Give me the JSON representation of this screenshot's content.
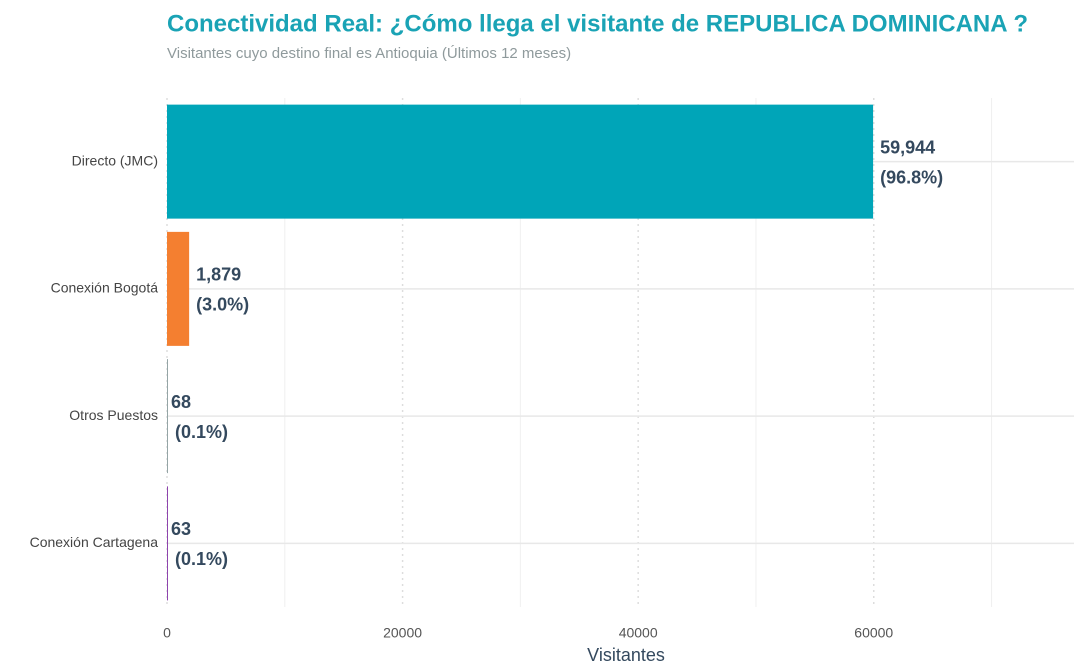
{
  "chart_data": {
    "type": "hbar",
    "title": "Conectividad Real: ¿Cómo llega el visitante de REPUBLICA DOMINICANA ?",
    "subtitle": "Visitantes cuyo destino final es Antioquia (Últimos 12 meses)",
    "x_label": "Visitantes",
    "categories": [
      "Directo (JMC)",
      "Conexión Bogotá",
      "Otros Puestos",
      "Conexión Cartagena"
    ],
    "values": [
      59944,
      1879,
      68,
      63
    ],
    "value_labels": [
      "59,944",
      "1,879",
      "68",
      "63"
    ],
    "percent_labels": [
      "(96.8%)",
      "(3.0%)",
      "(0.1%)",
      "(0.1%)"
    ],
    "colors": [
      "#00a5b8",
      "#f47f30",
      "#95a5a6",
      "#8e44ad"
    ],
    "xlim": [
      0,
      77000
    ],
    "xticks": [
      0,
      20000,
      40000,
      60000
    ],
    "xminor": [
      10000,
      30000,
      50000,
      70000
    ],
    "grid": true
  }
}
